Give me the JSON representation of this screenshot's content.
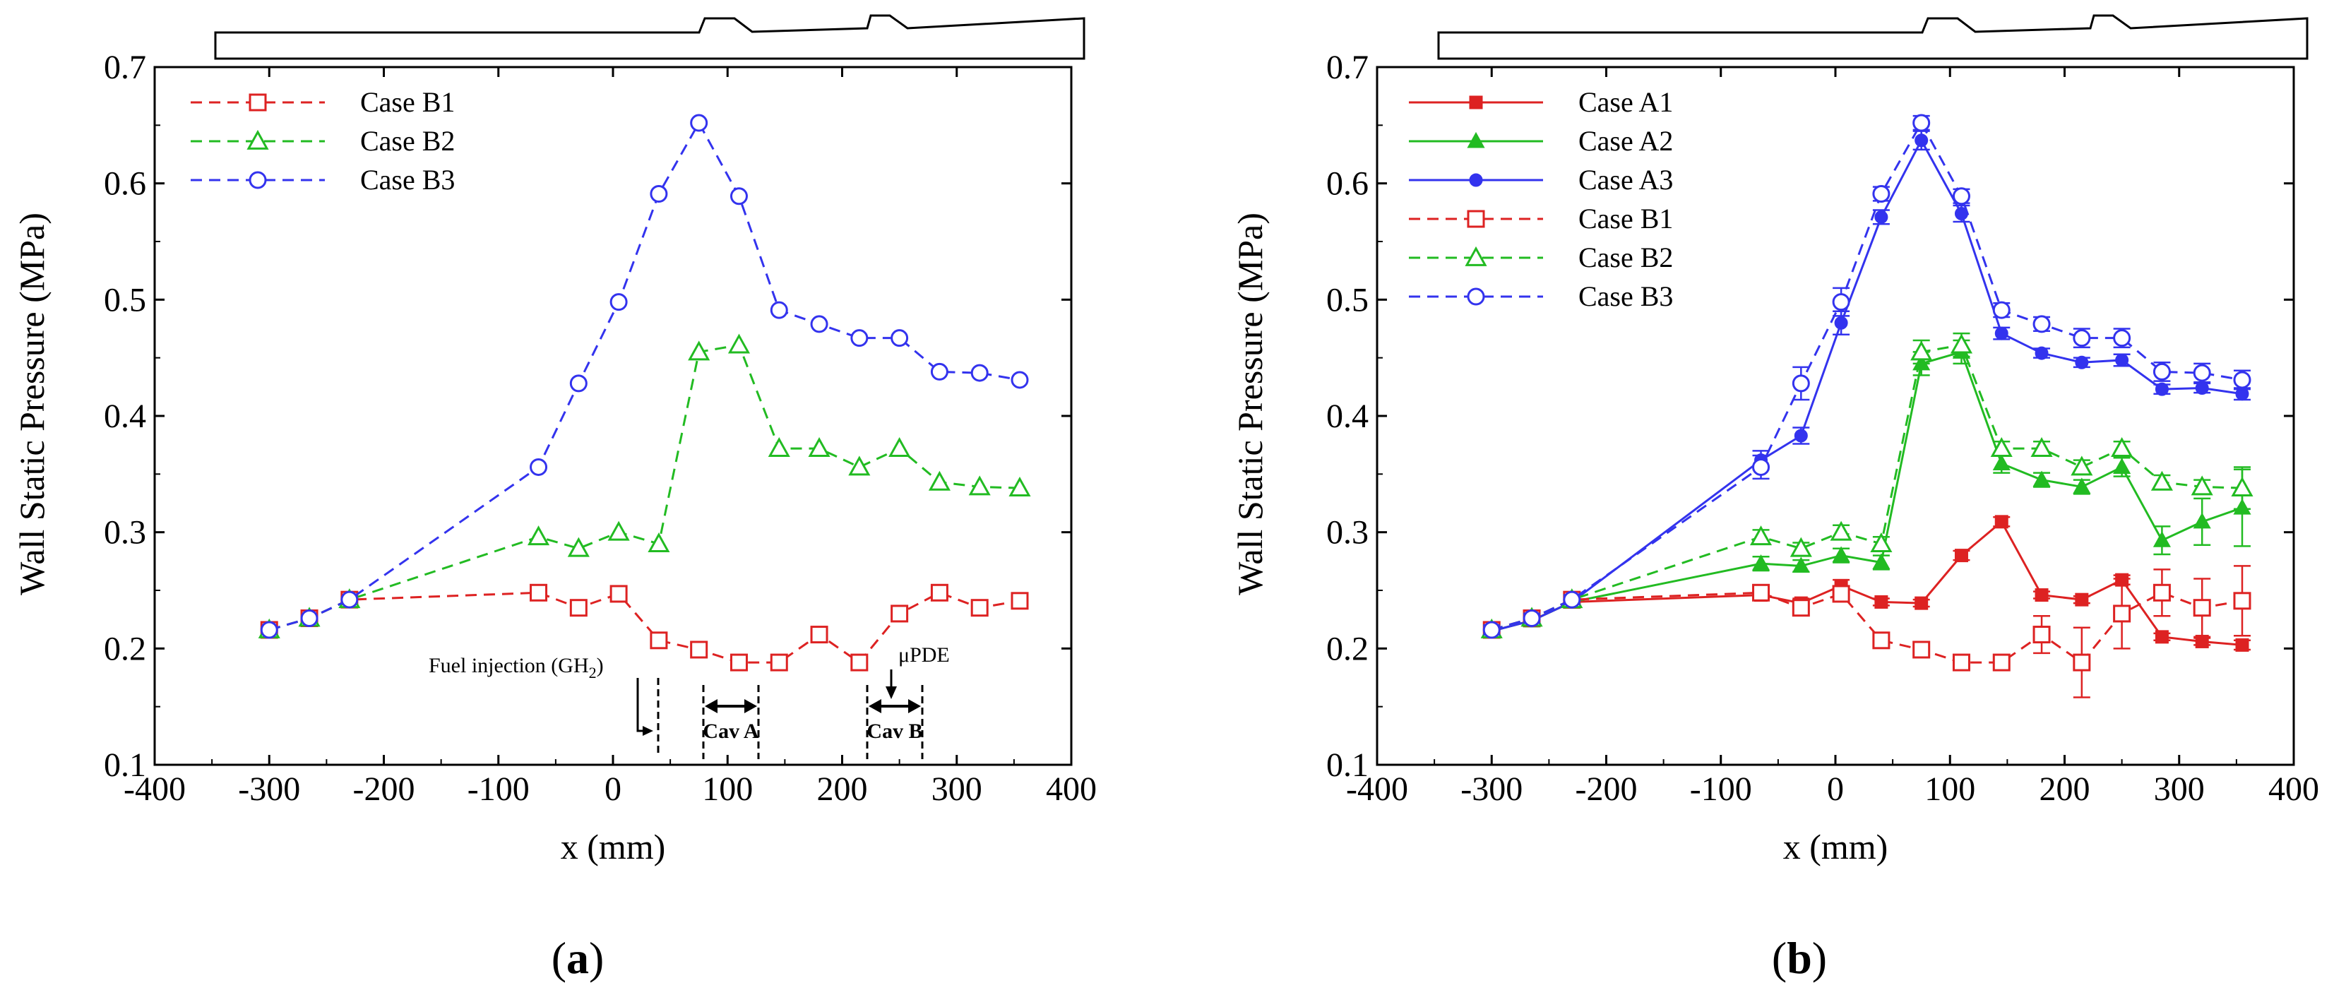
{
  "panels": [
    {
      "label_open": "(",
      "label": "a",
      "label_close": ")"
    },
    {
      "label_open": "(",
      "label": "b",
      "label_close": ")"
    }
  ],
  "colors": {
    "red": "#dd2222",
    "green": "#22bb22",
    "blue": "#3333ee",
    "axis": "#000000"
  },
  "chart_data": [
    {
      "type": "line",
      "xlabel": "x (mm)",
      "ylabel": "Wall Static Pressure (MPa)",
      "xlim": [
        -400,
        400
      ],
      "ylim": [
        0.1,
        0.7
      ],
      "xticks": [
        "-400",
        "-300",
        "-200",
        "-100",
        "0",
        "100",
        "200",
        "300",
        "400"
      ],
      "yticks": [
        "0.1",
        "0.2",
        "0.3",
        "0.4",
        "0.5",
        "0.6",
        "0.7"
      ],
      "legend_position": "top-left",
      "annotations": {
        "fuel": "Fuel injection (GH",
        "fuel_sub": "2",
        "fuel_close": ")",
        "cav_a": "Cav A",
        "cav_b": "Cav B",
        "updе": "μPDE"
      },
      "series": [
        {
          "name": "Case B1",
          "color": "red",
          "marker": "square",
          "line": "dashed",
          "x": [
            -300,
            -265,
            -230,
            -65,
            -30,
            5,
            40,
            75,
            110,
            145,
            180,
            215,
            250,
            285,
            320,
            355
          ],
          "y": [
            0.216,
            0.226,
            0.242,
            0.248,
            0.235,
            0.247,
            0.207,
            0.199,
            0.188,
            0.188,
            0.212,
            0.188,
            0.23,
            0.248,
            0.235,
            0.241
          ]
        },
        {
          "name": "Case B2",
          "color": "green",
          "marker": "triangle",
          "line": "dashed",
          "x": [
            -300,
            -265,
            -230,
            -65,
            -30,
            5,
            40,
            75,
            110,
            145,
            180,
            215,
            250,
            285,
            320,
            355
          ],
          "y": [
            0.216,
            0.226,
            0.242,
            0.296,
            0.286,
            0.3,
            0.29,
            0.455,
            0.461,
            0.372,
            0.372,
            0.356,
            0.372,
            0.343,
            0.339,
            0.338
          ]
        },
        {
          "name": "Case B3",
          "color": "blue",
          "marker": "circle",
          "line": "dashed",
          "x": [
            -300,
            -265,
            -230,
            -65,
            -30,
            5,
            40,
            75,
            110,
            145,
            180,
            215,
            250,
            285,
            320,
            355
          ],
          "y": [
            0.216,
            0.226,
            0.242,
            0.356,
            0.428,
            0.498,
            0.591,
            0.652,
            0.589,
            0.491,
            0.479,
            0.467,
            0.467,
            0.438,
            0.437,
            0.431
          ]
        }
      ]
    },
    {
      "type": "line",
      "xlabel": "x (mm)",
      "ylabel": "Wall Static Pressure (MPa)",
      "xlim": [
        -400,
        400
      ],
      "ylim": [
        0.1,
        0.7
      ],
      "xticks": [
        "-400",
        "-300",
        "-200",
        "-100",
        "0",
        "100",
        "200",
        "300",
        "400"
      ],
      "yticks": [
        "0.1",
        "0.2",
        "0.3",
        "0.4",
        "0.5",
        "0.6",
        "0.7"
      ],
      "legend_position": "top-left",
      "series": [
        {
          "name": "Case A1",
          "color": "red",
          "marker": "filled-square",
          "line": "solid",
          "x": [
            -300,
            -265,
            -230,
            -65,
            -30,
            5,
            40,
            75,
            110,
            145,
            180,
            215,
            250,
            285,
            320,
            355
          ],
          "y": [
            0.215,
            0.224,
            0.24,
            0.246,
            0.239,
            0.254,
            0.24,
            0.239,
            0.28,
            0.309,
            0.246,
            0.242,
            0.259,
            0.21,
            0.206,
            0.203
          ],
          "err": [
            0.003,
            0.003,
            0.003,
            0.004,
            0.004,
            0.005,
            0.003,
            0.003,
            0.004,
            0.004,
            0.003,
            0.003,
            0.004,
            0.003,
            0.003,
            0.004
          ]
        },
        {
          "name": "Case A2",
          "color": "green",
          "marker": "filled-triangle",
          "line": "solid",
          "x": [
            -300,
            -265,
            -230,
            -65,
            -30,
            5,
            40,
            75,
            110,
            145,
            180,
            215,
            250,
            285,
            320,
            355
          ],
          "y": [
            0.215,
            0.224,
            0.24,
            0.273,
            0.271,
            0.28,
            0.274,
            0.445,
            0.455,
            0.359,
            0.345,
            0.339,
            0.356,
            0.293,
            0.309,
            0.321
          ],
          "err": [
            0.004,
            0.004,
            0.004,
            0.006,
            0.005,
            0.006,
            0.006,
            0.01,
            0.01,
            0.008,
            0.006,
            0.006,
            0.008,
            0.012,
            0.02,
            0.033
          ]
        },
        {
          "name": "Case A3",
          "color": "blue",
          "marker": "filled-circle",
          "line": "solid",
          "x": [
            -300,
            -265,
            -230,
            -65,
            -30,
            5,
            40,
            75,
            110,
            145,
            180,
            215,
            250,
            285,
            320,
            355
          ],
          "y": [
            0.215,
            0.224,
            0.24,
            0.362,
            0.383,
            0.48,
            0.571,
            0.637,
            0.574,
            0.471,
            0.454,
            0.446,
            0.448,
            0.423,
            0.424,
            0.419
          ],
          "err": [
            0.004,
            0.004,
            0.004,
            0.008,
            0.007,
            0.01,
            0.006,
            0.008,
            0.007,
            0.005,
            0.004,
            0.004,
            0.005,
            0.004,
            0.004,
            0.005
          ]
        },
        {
          "name": "Case B1",
          "color": "red",
          "marker": "square",
          "line": "dashed",
          "x": [
            -300,
            -265,
            -230,
            -65,
            -30,
            5,
            40,
            75,
            110,
            145,
            180,
            215,
            250,
            285,
            320,
            355
          ],
          "y": [
            0.216,
            0.226,
            0.242,
            0.248,
            0.235,
            0.247,
            0.207,
            0.199,
            0.188,
            0.188,
            0.212,
            0.188,
            0.23,
            0.248,
            0.235,
            0.241
          ],
          "err": [
            0.004,
            0.004,
            0.004,
            0.006,
            0.005,
            0.006,
            0.004,
            0.004,
            0.006,
            0.004,
            0.016,
            0.03,
            0.03,
            0.02,
            0.025,
            0.03
          ]
        },
        {
          "name": "Case B2",
          "color": "green",
          "marker": "triangle",
          "line": "dashed",
          "x": [
            -300,
            -265,
            -230,
            -65,
            -30,
            5,
            40,
            75,
            110,
            145,
            180,
            215,
            250,
            285,
            320,
            355
          ],
          "y": [
            0.216,
            0.226,
            0.242,
            0.296,
            0.286,
            0.3,
            0.29,
            0.455,
            0.461,
            0.372,
            0.372,
            0.356,
            0.372,
            0.343,
            0.339,
            0.338
          ],
          "err": [
            0.004,
            0.004,
            0.004,
            0.006,
            0.005,
            0.006,
            0.006,
            0.01,
            0.01,
            0.006,
            0.006,
            0.006,
            0.006,
            0.006,
            0.006,
            0.018
          ]
        },
        {
          "name": "Case B3",
          "color": "blue",
          "marker": "circle",
          "line": "dashed",
          "x": [
            -300,
            -265,
            -230,
            -65,
            -30,
            5,
            40,
            75,
            110,
            145,
            180,
            215,
            250,
            285,
            320,
            355
          ],
          "y": [
            0.216,
            0.226,
            0.242,
            0.356,
            0.428,
            0.498,
            0.591,
            0.652,
            0.589,
            0.491,
            0.479,
            0.467,
            0.467,
            0.438,
            0.437,
            0.431
          ],
          "err": [
            0.004,
            0.004,
            0.004,
            0.01,
            0.014,
            0.012,
            0.006,
            0.006,
            0.006,
            0.006,
            0.006,
            0.008,
            0.008,
            0.008,
            0.008,
            0.008
          ]
        }
      ]
    }
  ]
}
